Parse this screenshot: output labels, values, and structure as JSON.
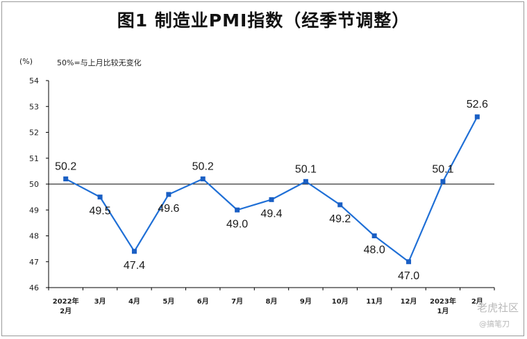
{
  "title": "图1  制造业PMI指数（经季节调整）",
  "unit_label": "(%)",
  "note": "50%=与上月比较无变化",
  "watermark": {
    "brand": "老虎社区",
    "user": "@搞笔刀"
  },
  "colors": {
    "line": "#1f6fd6",
    "marker": "#1a5fc4",
    "axis": "#000000"
  },
  "chart_data": {
    "type": "line",
    "title": "图1  制造业PMI指数（经季节调整）",
    "ylabel": "(%)",
    "ylim": [
      46,
      54
    ],
    "yticks": [
      "46",
      "47",
      "48",
      "49",
      "50",
      "51",
      "52",
      "53",
      "54"
    ],
    "reference_line": 50,
    "grid": false,
    "categories": [
      [
        "2022年",
        "2月"
      ],
      [
        "3月"
      ],
      [
        "4月"
      ],
      [
        "5月"
      ],
      [
        "6月"
      ],
      [
        "7月"
      ],
      [
        "8月"
      ],
      [
        "9月"
      ],
      [
        "10月"
      ],
      [
        "11月"
      ],
      [
        "12月"
      ],
      [
        "2023年",
        "1月"
      ],
      [
        "2月"
      ]
    ],
    "values": [
      50.2,
      49.5,
      47.4,
      49.6,
      50.2,
      49.0,
      49.4,
      50.1,
      49.2,
      48.0,
      47.0,
      50.1,
      52.6
    ],
    "data_labels": [
      "50.2",
      "49.5",
      "47.4",
      "49.6",
      "50.2",
      "49.0",
      "49.4",
      "50.1",
      "49.2",
      "48.0",
      "47.0",
      "50.1",
      "52.6"
    ],
    "label_positions": [
      "above",
      "below",
      "below",
      "below",
      "above",
      "below",
      "below",
      "above",
      "below",
      "below",
      "below",
      "above",
      "above"
    ]
  }
}
